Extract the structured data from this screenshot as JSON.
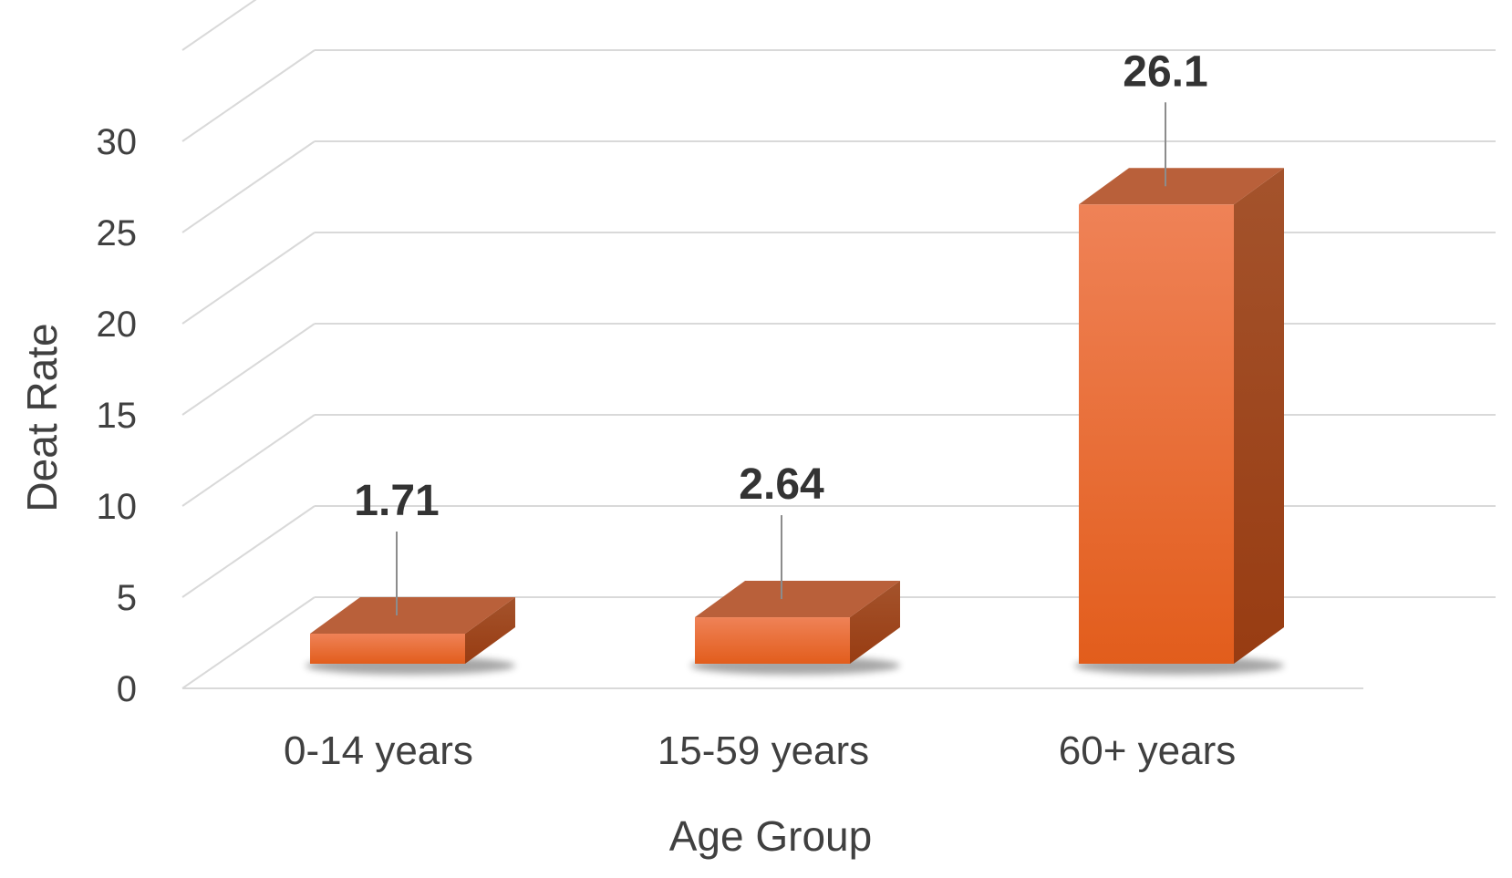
{
  "chart_data": {
    "type": "bar",
    "style": "3d-column",
    "categories": [
      "0-14 years",
      "15-59 years",
      "60+ years"
    ],
    "values": [
      1.71,
      2.64,
      26.1
    ],
    "data_labels": [
      "1.71",
      "2.64",
      "26.1"
    ],
    "xlabel": "Age Group",
    "ylabel": "Deat Rate",
    "ylim": [
      0,
      35
    ],
    "yticks": [
      0,
      5,
      10,
      15,
      20,
      25,
      30
    ],
    "ytick_labels": [
      "0",
      "5",
      "10",
      "15",
      "20",
      "25",
      "30"
    ],
    "grid": true,
    "legend": "none",
    "colors": {
      "front_top": "#ef8257",
      "front_bottom": "#e25d1c",
      "side": "#a5461c",
      "top": "#b9603a",
      "grid": "#d9d9d9",
      "text": "#404040"
    }
  }
}
